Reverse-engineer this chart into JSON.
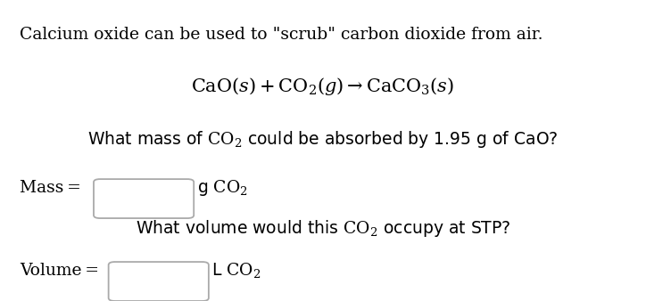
{
  "bg_color": "#ffffff",
  "text_color": "#000000",
  "font_size_main": 13.5,
  "font_size_eq": 15.0,
  "font_size_sub": 10.0,
  "line1": "Calcium oxide can be used to \"scrub\" carbon dioxide from air.",
  "mass_label": "Mass = ",
  "mass_unit_pre": "g CO",
  "vol_label": "Volume = ",
  "vol_unit_pre": "L CO",
  "line3_pre": "What mass of CO",
  "line3_post": " could be absorbed by 1.95 g of CaO?",
  "line5_pre": "What volume would this CO",
  "line5_post": " occupy at STP?"
}
